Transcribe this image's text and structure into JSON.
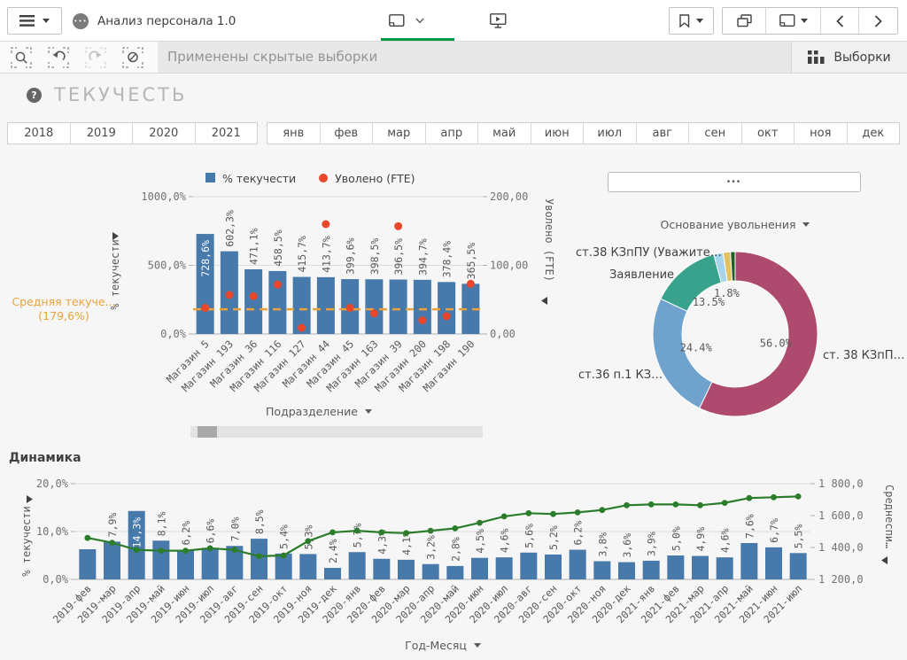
{
  "toolbar": {
    "app_title": "Анализ персонала 1.0",
    "app_avatar_glyph": "•••",
    "hidden_selections_message": "Применены скрытые выборки",
    "selections_label": "Выборки",
    "accent_green": "#009845"
  },
  "page": {
    "title": "ТЕКУЧЕСТЬ",
    "help_glyph": "?"
  },
  "filters": {
    "years": [
      "2018",
      "2019",
      "2020",
      "2021"
    ],
    "months": [
      "янв",
      "фев",
      "мар",
      "апр",
      "май",
      "июн",
      "июл",
      "авг",
      "сен",
      "окт",
      "ноя",
      "дек"
    ]
  },
  "donut_more_button": "•••",
  "chart_data": [
    {
      "id": "turnover-by-store",
      "type": "bar",
      "categories": [
        "Магазин 5",
        "Магазин 193",
        "Магазин 36",
        "Магазин 116",
        "Магазин 127",
        "Магазин 44",
        "Магазин 45",
        "Магазин 163",
        "Магазин 39",
        "Магазин 200",
        "Магазин 198",
        "Магазин 190"
      ],
      "series": [
        {
          "name": "% текучести",
          "type": "bar",
          "axis": "left",
          "color": "#4779ab",
          "values": [
            728.6,
            602.3,
            471.1,
            458.5,
            415.7,
            413.7,
            399.6,
            398.5,
            396.5,
            394.7,
            378.4,
            365.5
          ],
          "labels": [
            "728,6%",
            "602,3%",
            "471,1%",
            "458,5%",
            "415,7%",
            "413,7%",
            "399,6%",
            "398,5%",
            "396,5%",
            "394,7%",
            "378,4%",
            "365,5%"
          ]
        },
        {
          "name": "Уволено (FTE)",
          "type": "point",
          "axis": "right",
          "color": "#e8472b",
          "values": [
            38,
            57,
            55,
            72,
            9,
            160,
            38,
            30,
            157,
            20,
            26,
            73
          ]
        }
      ],
      "reference_line": {
        "label": "Средняя текуче...",
        "value_label": "(179,6%)",
        "value": 179.6,
        "color": "#e9a23b",
        "style": "dashed"
      },
      "left_axis": {
        "title": "% текучести",
        "range": [
          0,
          1000
        ],
        "tick_values": [
          0,
          500,
          1000
        ],
        "tick_labels": [
          "0,0%",
          "500,0%",
          "1000,0%"
        ]
      },
      "right_axis": {
        "title": "Уволено (FTE)",
        "range": [
          0,
          200
        ],
        "tick_values": [
          0,
          100,
          200
        ],
        "tick_labels": [
          "0,00",
          "100,00",
          "200,00"
        ]
      },
      "x_dimension": "Подразделение"
    },
    {
      "id": "dismissal-reasons",
      "type": "pie",
      "dimension_selector": "Основание увольнения",
      "slices": [
        {
          "label": "ст. 38 КЗпП…",
          "value": 56.0,
          "pct_label": "56.0%",
          "color": "#ae4a6e"
        },
        {
          "label": "ст.36 п.1 КЗ…",
          "value": 24.4,
          "pct_label": "24.4%",
          "color": "#6fa3ce"
        },
        {
          "label": "Заявление",
          "value": 13.5,
          "pct_label": "13.5%",
          "color": "#39a28d"
        },
        {
          "label": "ст.38 КЗпПУ (Уважите…",
          "value": 1.8,
          "pct_label": "1.8%",
          "color": "#a6d3ee"
        },
        {
          "label": "",
          "value": 1.4,
          "pct_label": "",
          "color": "#e1c160"
        },
        {
          "label": "",
          "value": 0.9,
          "pct_label": "",
          "color": "#225f27"
        }
      ]
    },
    {
      "id": "dynamics",
      "title": "Динамика",
      "type": "bar+line",
      "categories": [
        "2019-фев",
        "2019-мар",
        "2019-апр",
        "2019-май",
        "2019-июн",
        "2019-июл",
        "2019-авг",
        "2019-сен",
        "2019-окт",
        "2019-ноя",
        "2019-дек",
        "2020-янв",
        "2020-фев",
        "2020-мар",
        "2020-апр",
        "2020-май",
        "2020-июн",
        "2020-июл",
        "2020-авг",
        "2020-сен",
        "2020-окт",
        "2020-ноя",
        "2020-дек",
        "2021-янв",
        "2021-фев",
        "2021-мар",
        "2021-апр",
        "2021-май",
        "2021-июн",
        "2021-июл"
      ],
      "series": [
        {
          "name": "% текучести",
          "type": "bar",
          "axis": "left",
          "color": "#4779ab",
          "values": [
            6.3,
            7.9,
            14.3,
            8.1,
            6.2,
            6.6,
            7.0,
            8.5,
            5.4,
            5.3,
            2.4,
            5.7,
            4.3,
            4.1,
            3.2,
            2.8,
            4.5,
            4.6,
            5.6,
            5.2,
            6.2,
            3.8,
            3.6,
            3.9,
            5.0,
            4.9,
            4.6,
            7.6,
            6.7,
            5.5
          ],
          "labels": [
            "",
            "7,9%",
            "14,3%",
            "8,1%",
            "6,2%",
            "6,6%",
            "7,0%",
            "8,5%",
            "5,4%",
            "5,3%",
            "2,4%",
            "5,7%",
            "4,3%",
            "4,1%",
            "3,2%",
            "2,8%",
            "4,5%",
            "4,6%",
            "5,6%",
            "5,2%",
            "6,2%",
            "3,8%",
            "3,6%",
            "3,9%",
            "5,0%",
            "4,9%",
            "4,6%",
            "7,6%",
            "6,7%",
            "5,5%"
          ]
        },
        {
          "name": "Среднесписочная",
          "type": "line",
          "axis": "right",
          "color": "#2b7d2b",
          "values": [
            1460,
            1430,
            1385,
            1380,
            1380,
            1395,
            1385,
            1345,
            1350,
            1440,
            1495,
            1505,
            1495,
            1490,
            1505,
            1520,
            1555,
            1595,
            1615,
            1610,
            1620,
            1635,
            1665,
            1670,
            1670,
            1665,
            1680,
            1710,
            1715,
            1720
          ]
        }
      ],
      "left_axis": {
        "title": "% текучести",
        "range": [
          0,
          20
        ],
        "tick_values": [
          0,
          10,
          20
        ],
        "tick_labels": [
          "0,0%",
          "10,0%",
          "20,0%"
        ]
      },
      "right_axis": {
        "title": "Среднеспи…",
        "range": [
          1200,
          1800
        ],
        "tick_values": [
          1200,
          1400,
          1600,
          1800
        ],
        "tick_labels": [
          "1 200,0",
          "1 400,0",
          "1 600,0",
          "1 800,0"
        ]
      },
      "x_dimension": "Год-Месяц"
    }
  ]
}
